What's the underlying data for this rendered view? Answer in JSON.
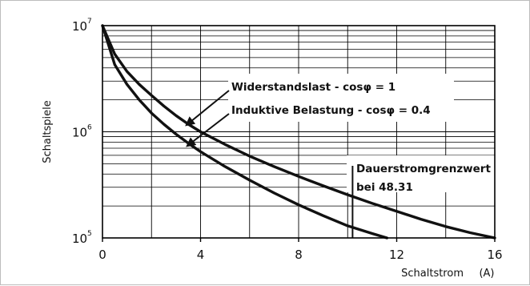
{
  "chart_data": {
    "type": "line",
    "xlabel": "Schaltstrom",
    "xunit": "(A)",
    "ylabel": "Schaltspiele",
    "xlim": [
      0,
      16
    ],
    "ylim": [
      100000,
      10000000
    ],
    "y_scale": "log",
    "grid": true,
    "x_ticks": [
      "0",
      "4",
      "8",
      "12",
      "16"
    ],
    "y_ticks": [
      {
        "base": "10",
        "exp": "7",
        "value": 10000000
      },
      {
        "base": "10",
        "exp": "6",
        "value": 1000000
      },
      {
        "base": "10",
        "exp": "5",
        "value": 100000
      }
    ],
    "series": [
      {
        "name": "Widerstandslast - cosφ = 1",
        "points": [
          [
            0,
            10000000
          ],
          [
            0.5,
            5400000
          ],
          [
            1,
            3700000
          ],
          [
            1.5,
            2800000
          ],
          [
            2,
            2200000
          ],
          [
            2.5,
            1750000
          ],
          [
            3,
            1420000
          ],
          [
            3.5,
            1180000
          ],
          [
            4,
            1000000
          ],
          [
            5,
            760000
          ],
          [
            6,
            590000
          ],
          [
            7,
            470000
          ],
          [
            8,
            380000
          ],
          [
            9,
            310000
          ],
          [
            10,
            255000
          ],
          [
            11,
            212000
          ],
          [
            12,
            178000
          ],
          [
            13,
            150000
          ],
          [
            14,
            128000
          ],
          [
            15,
            112000
          ],
          [
            16,
            100000
          ]
        ]
      },
      {
        "name": "Induktive Belastung - cosφ = 0.4",
        "points": [
          [
            0,
            10000000
          ],
          [
            0.5,
            4300000
          ],
          [
            1,
            2800000
          ],
          [
            1.5,
            2000000
          ],
          [
            2,
            1500000
          ],
          [
            2.5,
            1180000
          ],
          [
            3,
            950000
          ],
          [
            3.5,
            780000
          ],
          [
            4,
            650000
          ],
          [
            5,
            470000
          ],
          [
            6,
            350000
          ],
          [
            7,
            265000
          ],
          [
            8,
            205000
          ],
          [
            9,
            162000
          ],
          [
            10,
            130000
          ],
          [
            11,
            110000
          ],
          [
            11.6,
            100000
          ]
        ]
      }
    ],
    "annotations": [
      {
        "text": "Widerstandslast - cosφ = 1"
      },
      {
        "text": "Induktive Belastung - cosφ = 0.4"
      },
      {
        "text": "Dauerstromgrenzwert",
        "text2": "bei 48.31",
        "x": 10.2
      }
    ]
  }
}
